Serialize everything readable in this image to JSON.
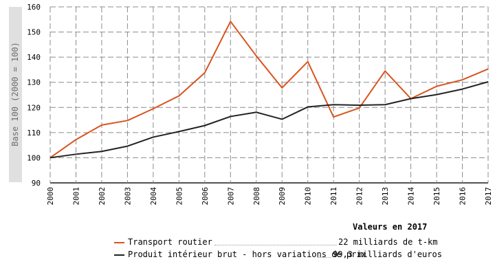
{
  "chart_data": {
    "type": "line",
    "ylabel": "Base 100 (2000 = 100)",
    "ylim": [
      90,
      160
    ],
    "yticks": [
      90,
      100,
      110,
      120,
      130,
      140,
      150,
      160
    ],
    "x": [
      "2000",
      "2001",
      "2002",
      "2003",
      "2004",
      "2005",
      "2006",
      "2007",
      "2008",
      "2009",
      "2010",
      "2011",
      "2012",
      "2013",
      "2014",
      "2015",
      "2016",
      "2017"
    ],
    "grid": true,
    "series": [
      {
        "name": "Transport routier",
        "color": "#d9531e",
        "values": [
          100,
          107.2,
          113,
          114.8,
          119.5,
          124.6,
          133.8,
          154.2,
          140.5,
          127.8,
          138.2,
          116.2,
          119.8,
          134.5,
          123.5,
          128.4,
          131,
          135.3
        ]
      },
      {
        "name": "Produit intérieur brut - hors variations de prix",
        "color": "#222222",
        "values": [
          100,
          101.4,
          102.5,
          104.6,
          108.2,
          110.4,
          112.8,
          116.4,
          118.1,
          115.3,
          120.2,
          121.1,
          120.9,
          121.1,
          123.5,
          125.1,
          127.3,
          130.2
        ]
      }
    ]
  },
  "legend": {
    "title": "Valeurs en 2017",
    "items": [
      {
        "label": "Transport routier",
        "value": "22 milliards de t-km"
      },
      {
        "label": "Produit intérieur brut - hors variations de prix",
        "value": "99,3 milliards d'euros"
      }
    ]
  }
}
